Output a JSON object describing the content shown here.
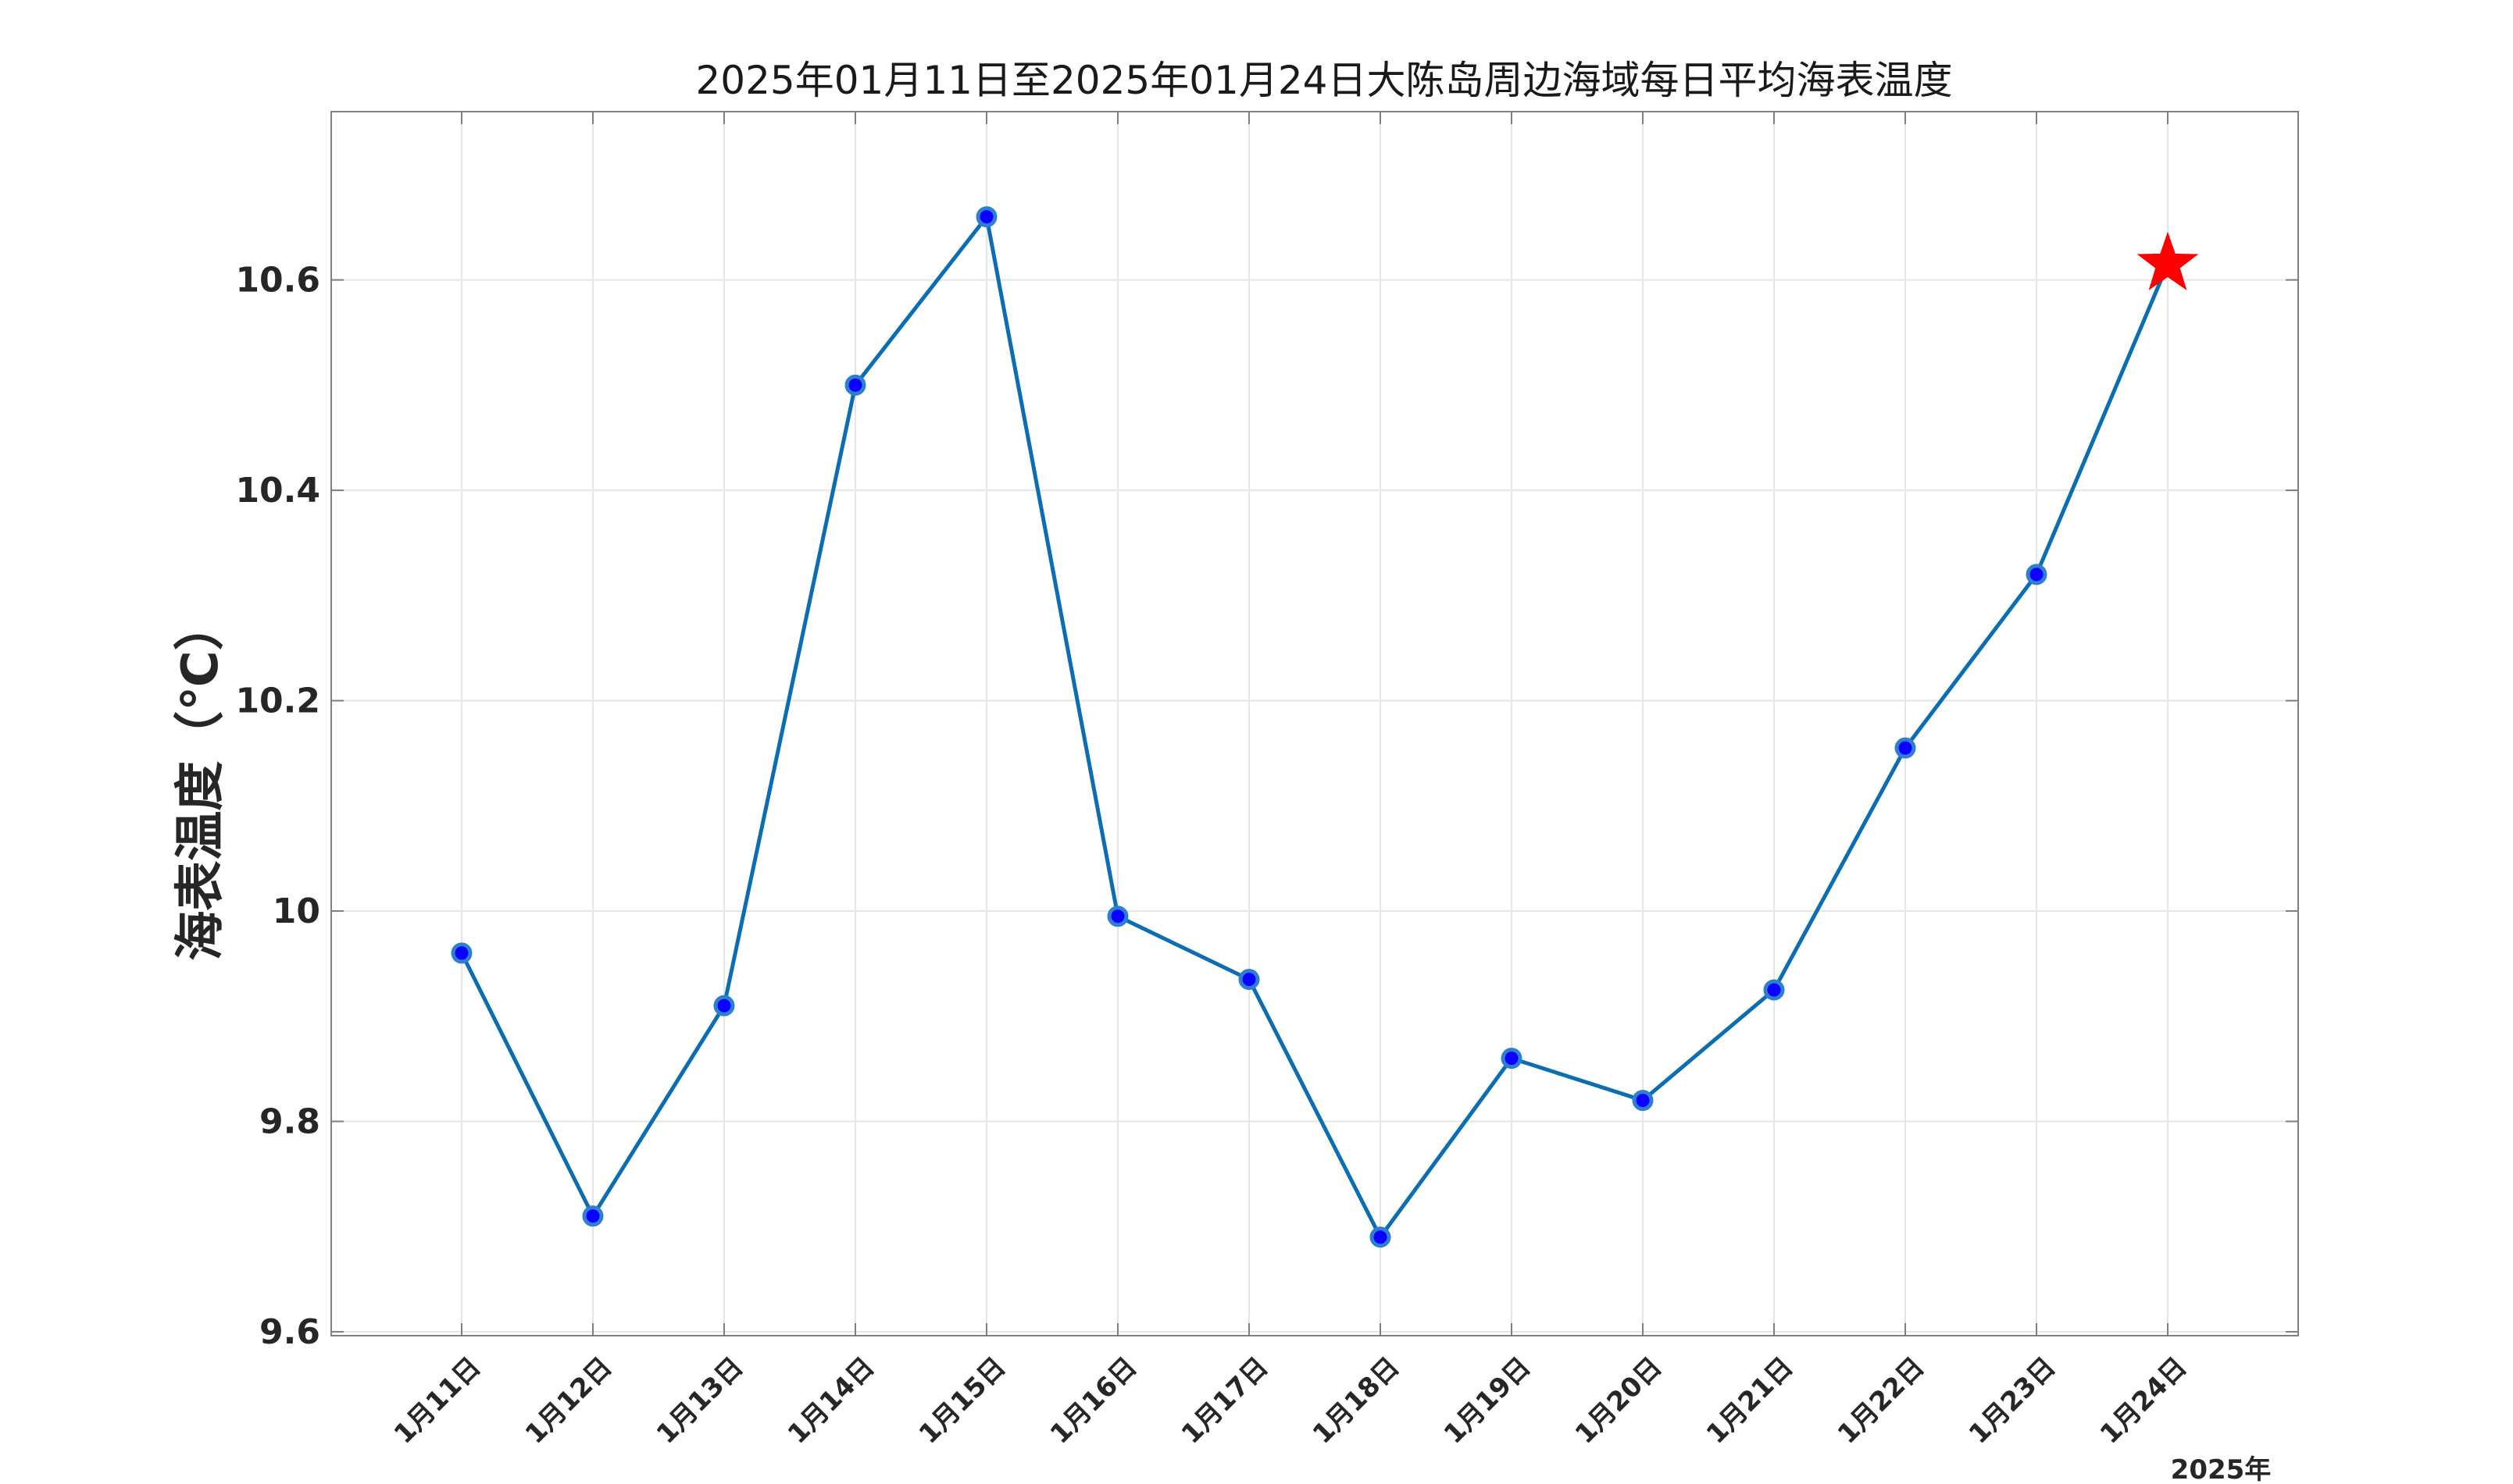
{
  "chart_data": {
    "type": "line",
    "title": "2025年01月11日至2025年01月24日大陈岛周边海域每日平均海表温度",
    "ylabel": "海表温度（℃）",
    "xlabel_note": "2025年",
    "ylim": [
      9.6,
      10.76
    ],
    "yticks": [
      {
        "value": 9.6,
        "label": "9.6"
      },
      {
        "value": 9.8,
        "label": "9.8"
      },
      {
        "value": 10.0,
        "label": "10"
      },
      {
        "value": 10.2,
        "label": "10.2"
      },
      {
        "value": 10.4,
        "label": "10.4"
      },
      {
        "value": 10.6,
        "label": "10.6"
      }
    ],
    "categories": [
      "1月11日",
      "1月12日",
      "1月13日",
      "1月14日",
      "1月15日",
      "1月16日",
      "1月17日",
      "1月18日",
      "1月19日",
      "1月20日",
      "1月21日",
      "1月22日",
      "1月23日",
      "1月24日"
    ],
    "values": [
      9.96,
      9.71,
      9.91,
      10.5,
      10.66,
      9.995,
      9.935,
      9.69,
      9.86,
      9.82,
      9.925,
      10.155,
      10.32,
      10.615
    ],
    "highlight_last": true,
    "grid": true,
    "colors": {
      "line": "#0b6eb3",
      "marker_fill": "#0a00ff",
      "marker_edge": "#2e7fd0",
      "highlight": "#ff0000"
    }
  }
}
